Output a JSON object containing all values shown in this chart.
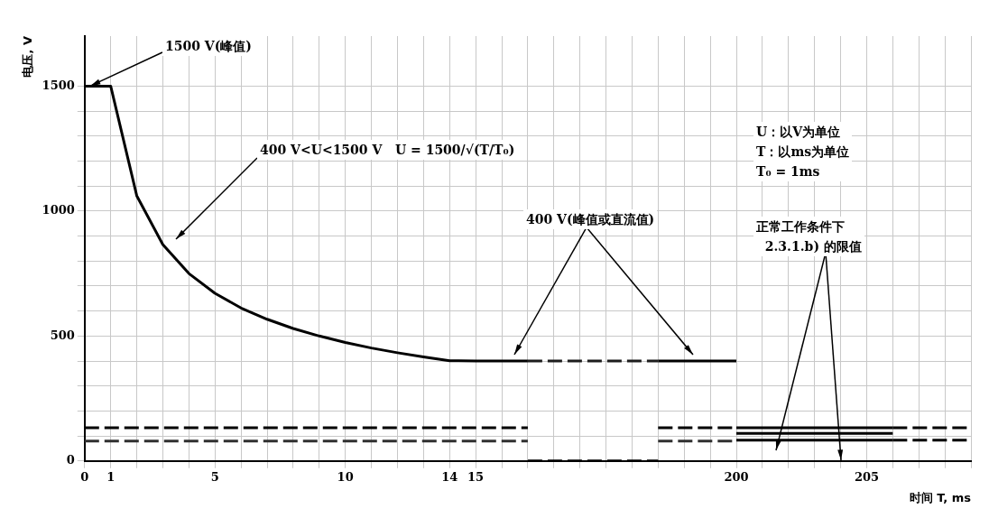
{
  "chart_data": {
    "type": "line",
    "xlabel": "时间 T, ms",
    "ylabel": "电压, V",
    "categories": [
      "0",
      "1",
      null,
      null,
      null,
      "5",
      null,
      null,
      null,
      null,
      "10",
      null,
      null,
      null,
      "14",
      "15",
      null,
      null,
      null,
      null,
      null,
      null,
      null,
      null,
      null,
      "200",
      null,
      null,
      null,
      null,
      "205",
      null,
      null,
      null,
      null
    ],
    "ylim": [
      0,
      1700
    ],
    "yticks": [
      0,
      {
        "value": 100,
        "label": null
      },
      {
        "value": 200,
        "label": null
      },
      {
        "value": 300,
        "label": null
      },
      {
        "value": 400,
        "label": null
      },
      500,
      {
        "value": 600,
        "label": null
      },
      {
        "value": 700,
        "label": null
      },
      {
        "value": 800,
        "label": null
      },
      {
        "value": 900,
        "label": null
      },
      1000,
      {
        "value": 1100,
        "label": null
      },
      {
        "value": 1200,
        "label": null
      },
      {
        "value": 1300,
        "label": null
      },
      {
        "value": 1400,
        "label": null
      },
      1500
    ],
    "grid": true,
    "legend": false,
    "marker": "none",
    "series": [
      {
        "color": "#000000",
        "line_style": "solid",
        "values": [
          1500,
          1500,
          1061,
          866,
          750,
          671,
          612,
          567,
          530,
          500,
          474,
          452,
          433,
          416,
          401,
          400,
          400,
          400,
          null,
          null,
          null,
          null,
          400,
          400,
          400,
          400,
          null,
          null,
          null,
          null,
          null,
          null,
          null,
          null,
          null
        ]
      },
      {
        "color": "#1c1c1c",
        "line_style": "dashed",
        "values": [
          null,
          null,
          null,
          null,
          null,
          null,
          null,
          null,
          null,
          null,
          null,
          null,
          null,
          null,
          null,
          null,
          null,
          400,
          400,
          400,
          400,
          400,
          400,
          null,
          null,
          null,
          null,
          null,
          null,
          null,
          null,
          null,
          null,
          null,
          null
        ]
      },
      {
        "color": "#000000",
        "line_style": "dashed",
        "values": [
          133,
          133,
          133,
          133,
          133,
          133,
          133,
          133,
          133,
          133,
          133,
          133,
          133,
          133,
          133,
          133,
          133,
          133,
          null,
          null,
          null,
          null,
          133,
          133,
          133,
          133,
          null,
          null,
          null,
          null,
          null,
          null,
          null,
          null,
          null
        ]
      },
      {
        "color": "#303030",
        "line_style": "dashed",
        "values": [
          80,
          80,
          80,
          80,
          80,
          80,
          80,
          80,
          80,
          80,
          80,
          80,
          80,
          80,
          80,
          80,
          80,
          80,
          null,
          null,
          null,
          null,
          80,
          80,
          80,
          80,
          null,
          null,
          null,
          null,
          null,
          null,
          null,
          null,
          null
        ]
      },
      {
        "color": "#000000",
        "line_style": "dashed",
        "values": [
          null,
          null,
          null,
          null,
          null,
          null,
          null,
          null,
          null,
          null,
          null,
          null,
          null,
          null,
          null,
          null,
          null,
          0,
          0,
          0,
          0,
          0,
          0,
          null,
          null,
          null,
          null,
          null,
          null,
          null,
          null,
          null,
          null,
          null,
          null
        ]
      },
      {
        "color": "#000000",
        "line_style": "solid",
        "values": [
          null,
          null,
          null,
          null,
          null,
          null,
          null,
          null,
          null,
          null,
          null,
          null,
          null,
          null,
          null,
          null,
          null,
          null,
          null,
          null,
          null,
          null,
          null,
          null,
          null,
          133,
          133,
          133,
          133,
          133,
          133,
          133,
          null,
          null,
          null
        ]
      },
      {
        "color": "#000000",
        "line_style": "solid",
        "values": [
          null,
          null,
          null,
          null,
          null,
          null,
          null,
          null,
          null,
          null,
          null,
          null,
          null,
          null,
          null,
          null,
          null,
          null,
          null,
          null,
          null,
          null,
          null,
          null,
          null,
          110,
          110,
          110,
          110,
          110,
          110,
          110,
          null,
          null,
          null
        ]
      },
      {
        "color": "#000000",
        "line_style": "solid",
        "values": [
          null,
          null,
          null,
          null,
          null,
          null,
          null,
          null,
          null,
          null,
          null,
          null,
          null,
          null,
          null,
          null,
          null,
          null,
          null,
          null,
          null,
          null,
          null,
          null,
          null,
          83,
          83,
          83,
          83,
          83,
          83,
          83,
          null,
          null,
          null
        ]
      },
      {
        "color": "#000000",
        "line_style": "dashed",
        "values": [
          null,
          null,
          null,
          null,
          null,
          null,
          null,
          null,
          null,
          null,
          null,
          null,
          null,
          null,
          null,
          null,
          null,
          null,
          null,
          null,
          null,
          null,
          null,
          null,
          null,
          null,
          null,
          null,
          null,
          null,
          null,
          133,
          133,
          133,
          133
        ]
      },
      {
        "color": "#000000",
        "line_style": "dashed",
        "values": [
          null,
          null,
          null,
          null,
          null,
          null,
          null,
          null,
          null,
          null,
          null,
          null,
          null,
          null,
          null,
          null,
          null,
          null,
          null,
          null,
          null,
          null,
          null,
          null,
          null,
          null,
          null,
          null,
          null,
          null,
          null,
          83,
          83,
          83,
          83
        ]
      }
    ],
    "annotations": [
      {
        "text": "1500 V(峰值)",
        "x": "0",
        "y": 1500
      },
      "400 V<U<1500 V   U = 1500/√(T/T₀)",
      "400 V(峰值或直流值)",
      "U：以V为单位\nT：以ms为单位\nT₀ = 1ms",
      "正常工作条件下\n  2.3.1.b) 的限值"
    ]
  }
}
